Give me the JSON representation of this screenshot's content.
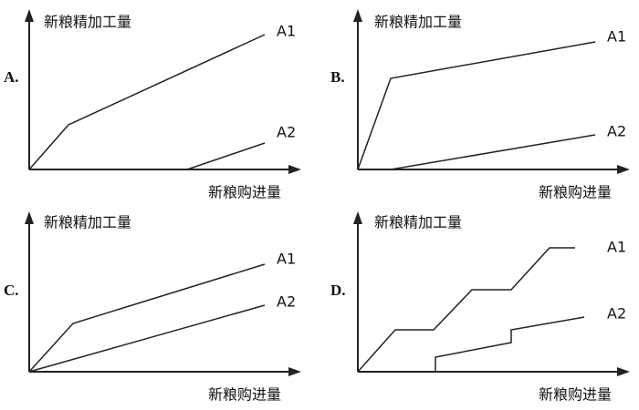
{
  "panels": [
    {
      "label": "A.",
      "y_axis": "新粮精加工量",
      "x_axis": "新粮购进量",
      "lines": [
        "A1",
        "A2"
      ]
    },
    {
      "label": "B.",
      "y_axis": "新粮精加工量",
      "x_axis": "新粮购进量",
      "lines": [
        "A1",
        "A2"
      ]
    },
    {
      "label": "C.",
      "y_axis": "新粮精加工量",
      "x_axis": "新粮购进量",
      "lines": [
        "A1",
        "A2"
      ]
    },
    {
      "label": "D.",
      "y_axis": "新粮精加工量",
      "x_axis": "新粮购进量",
      "lines": [
        "A1",
        "A2"
      ]
    }
  ]
}
